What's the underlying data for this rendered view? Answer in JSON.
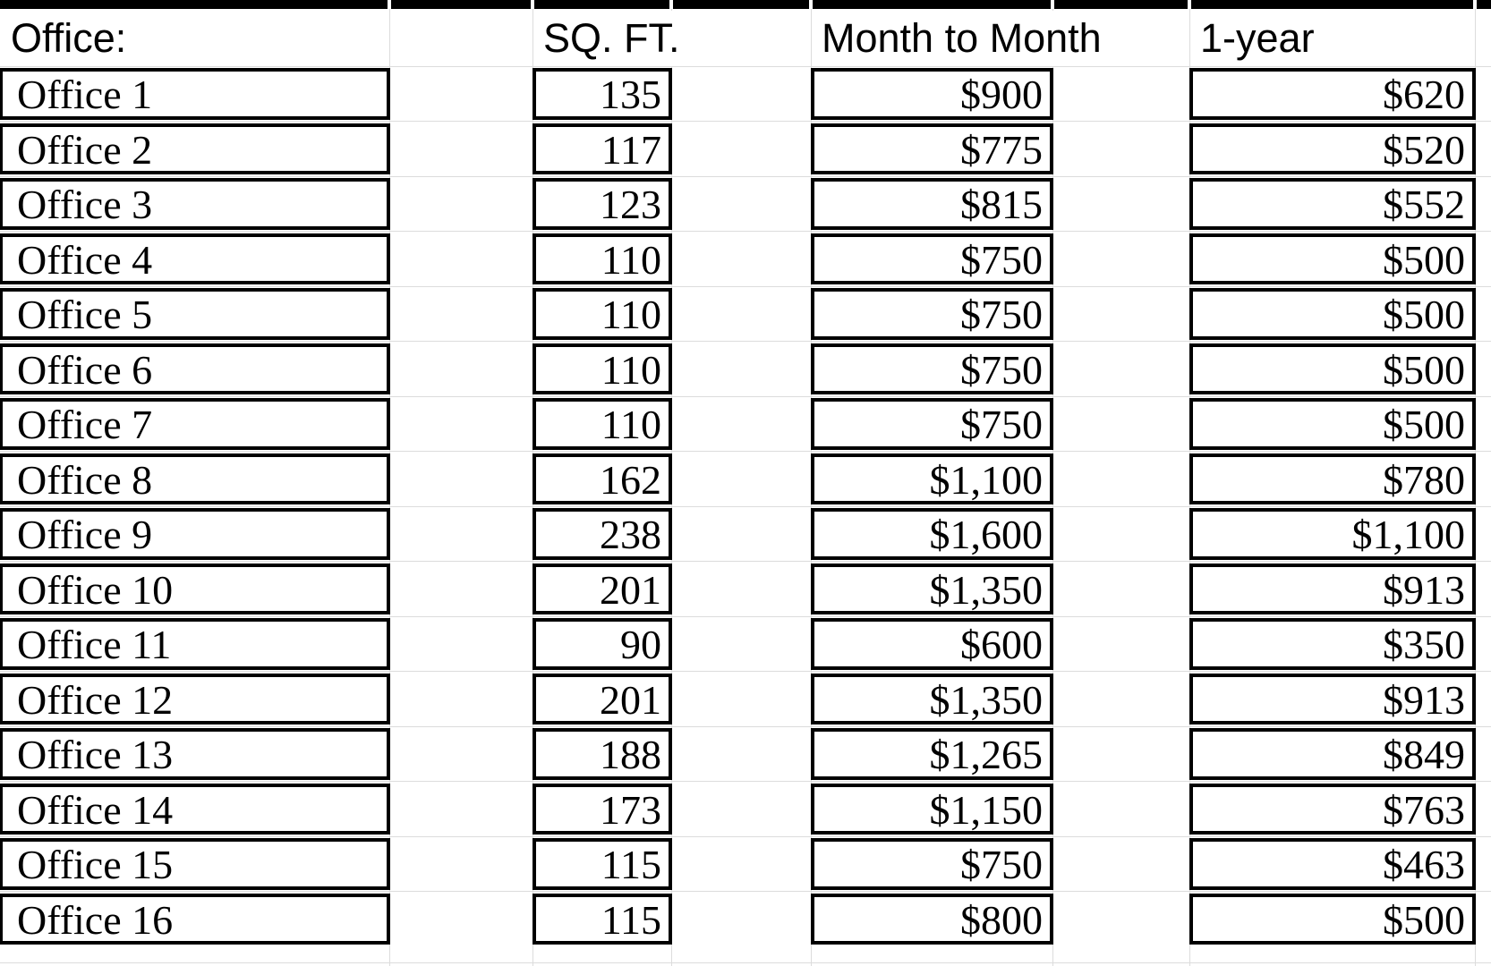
{
  "sheet": {
    "header": {
      "office": "Office:",
      "sqft": "SQ. FT.",
      "month_to_month": "Month to Month",
      "one_year": "1-year"
    },
    "rows": [
      {
        "office": "Office 1",
        "sqft": "135",
        "month_to_month": "$900",
        "one_year": "$620"
      },
      {
        "office": "Office 2",
        "sqft": "117",
        "month_to_month": "$775",
        "one_year": "$520"
      },
      {
        "office": "Office 3",
        "sqft": "123",
        "month_to_month": "$815",
        "one_year": "$552"
      },
      {
        "office": "Office 4",
        "sqft": "110",
        "month_to_month": "$750",
        "one_year": "$500"
      },
      {
        "office": "Office 5",
        "sqft": "110",
        "month_to_month": "$750",
        "one_year": "$500"
      },
      {
        "office": "Office 6",
        "sqft": "110",
        "month_to_month": "$750",
        "one_year": "$500"
      },
      {
        "office": "Office 7",
        "sqft": "110",
        "month_to_month": "$750",
        "one_year": "$500"
      },
      {
        "office": "Office 8",
        "sqft": "162",
        "month_to_month": "$1,100",
        "one_year": "$780"
      },
      {
        "office": "Office 9",
        "sqft": "238",
        "month_to_month": "$1,600",
        "one_year": "$1,100"
      },
      {
        "office": "Office 10",
        "sqft": "201",
        "month_to_month": "$1,350",
        "one_year": "$913"
      },
      {
        "office": "Office 11",
        "sqft": "90",
        "month_to_month": "$600",
        "one_year": "$350"
      },
      {
        "office": "Office 12",
        "sqft": "201",
        "month_to_month": "$1,350",
        "one_year": "$913"
      },
      {
        "office": "Office 13",
        "sqft": "188",
        "month_to_month": "$1,265",
        "one_year": "$849"
      },
      {
        "office": "Office 14",
        "sqft": "173",
        "month_to_month": "$1,150",
        "one_year": "$763"
      },
      {
        "office": "Office 15",
        "sqft": "115",
        "month_to_month": "$750",
        "one_year": "$463"
      },
      {
        "office": "Office 16",
        "sqft": "115",
        "month_to_month": "$800",
        "one_year": "$500"
      }
    ]
  },
  "colors": {
    "cell_border": "#000000",
    "gridline": "#dcdcdc",
    "top_bar_fill": "#000000",
    "background": "#ffffff",
    "text": "#000000"
  }
}
